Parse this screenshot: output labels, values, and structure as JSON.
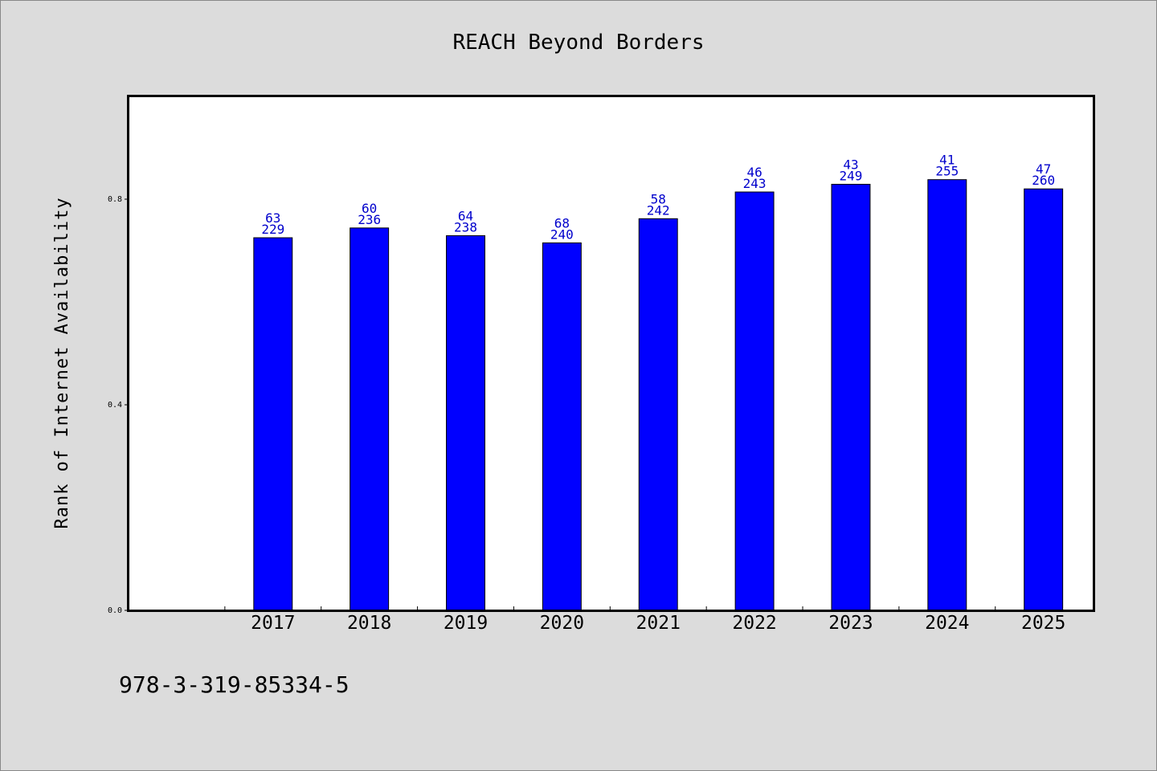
{
  "chart_data": {
    "type": "bar",
    "title": "REACH Beyond Borders",
    "ylabel": "Rank of Internet Availability",
    "xlabel": "",
    "categories": [
      "2017",
      "2018",
      "2019",
      "2020",
      "2021",
      "2022",
      "2023",
      "2024",
      "2025"
    ],
    "values": [
      0.725,
      0.744,
      0.729,
      0.715,
      0.762,
      0.814,
      0.829,
      0.838,
      0.82
    ],
    "label_top": [
      "63",
      "60",
      "64",
      "68",
      "58",
      "46",
      "43",
      "41",
      "47"
    ],
    "label_bottom": [
      "229",
      "236",
      "238",
      "240",
      "242",
      "243",
      "249",
      "255",
      "260"
    ],
    "ylim": [
      0,
      1.0
    ],
    "yticks": [
      0.0,
      0.4,
      0.8
    ],
    "ytick_labels": [
      "0.0",
      "0.4",
      "0.8"
    ],
    "grid": false,
    "legend": "none",
    "bar_color": "#0000ff",
    "label_color": "#0000cc"
  },
  "footer": {
    "isbn": "978-3-319-85334-5"
  }
}
